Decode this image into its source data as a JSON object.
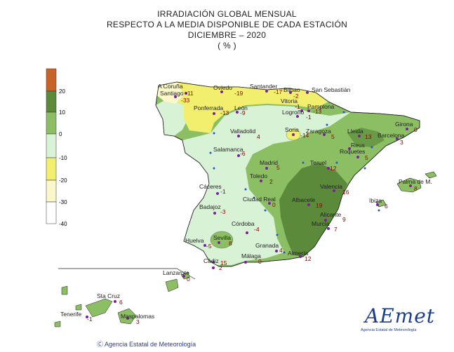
{
  "header": {
    "line1": "IRRADIACIÓN  GLOBAL MENSUAL",
    "line2": "RESPECTO  A LA MEDIA DISPONIBLE DE CADA ESTACIÓN",
    "line3": "DICIEMBRE  – 2020",
    "line4": "( % )"
  },
  "legend": {
    "labels": [
      "20",
      "10",
      "0",
      "-10",
      "-20",
      "-30",
      "-40"
    ],
    "colors": [
      "#c8642a",
      "#5a8a3a",
      "#8cbf64",
      "#d8f2d6",
      "#f2ef6e",
      "#faf7c8",
      "#ffffff"
    ]
  },
  "stations": [
    {
      "name": "A Coruña",
      "value": ""
    },
    {
      "name": "Santiago",
      "value": "-11"
    },
    {
      "name": "",
      "value": "-33"
    },
    {
      "name": "Oviedo",
      "value": "-19"
    },
    {
      "name": "Santander",
      "value": "-17"
    },
    {
      "name": "Bilbao",
      "value": "-2"
    },
    {
      "name": "San Sebastián",
      "value": ""
    },
    {
      "name": "Vitoria",
      "value": "-1"
    },
    {
      "name": "Pamplona",
      "value": "-13"
    },
    {
      "name": "Ponferrada",
      "value": "-13"
    },
    {
      "name": "León",
      "value": "-9"
    },
    {
      "name": "Logroño",
      "value": "-1"
    },
    {
      "name": "Girona",
      "value": "0"
    },
    {
      "name": "Valladolid",
      "value": "4"
    },
    {
      "name": "Soria",
      "value": "-14"
    },
    {
      "name": "Zaragoza",
      "value": "5"
    },
    {
      "name": "Lleida",
      "value": "13"
    },
    {
      "name": "Barcelona",
      "value": "3"
    },
    {
      "name": "Salamanca",
      "value": "-6"
    },
    {
      "name": "Reus",
      "value": ""
    },
    {
      "name": "Roquetes",
      "value": "5"
    },
    {
      "name": "Madrid",
      "value": "5"
    },
    {
      "name": "Teruel",
      "value": "12"
    },
    {
      "name": "Toledo",
      "value": "2"
    },
    {
      "name": "Palma de M.",
      "value": "8"
    },
    {
      "name": "Cáceres",
      "value": "-1"
    },
    {
      "name": "Valencia",
      "value": "16"
    },
    {
      "name": "Ciudad Real",
      "value": "0"
    },
    {
      "name": "Albacete",
      "value": "19"
    },
    {
      "name": "Ibiza",
      "value": "6"
    },
    {
      "name": "Badajoz",
      "value": "-3"
    },
    {
      "name": "Alicante",
      "value": "9"
    },
    {
      "name": "Córdoba",
      "value": "-4"
    },
    {
      "name": "Murcia",
      "value": "7"
    },
    {
      "name": "Huelva",
      "value": "-5"
    },
    {
      "name": "Sevilla",
      "value": "8"
    },
    {
      "name": "Granada",
      "value": "4"
    },
    {
      "name": "Almería",
      "value": "12"
    },
    {
      "name": "Málaga",
      "value": "0"
    },
    {
      "name": "Cádiz",
      "value": "15"
    },
    {
      "name": "",
      "value": "2"
    },
    {
      "name": "Lanzarote",
      "value": "0"
    },
    {
      "name": "Sta Cruz",
      "value": "6"
    },
    {
      "name": "Tenerife",
      "value": "-1"
    },
    {
      "name": "Maspalomas",
      "value": "3"
    }
  ],
  "footer": {
    "copyright": "Ⓒ  Agencia Estatal de Meteorología",
    "logo_text": "AEmet",
    "logo_sub": "Agencia Estatal de Meteorología"
  },
  "colors": {
    "yellow": "#f2ef6e",
    "pale_green": "#d8f2d6",
    "mid_green": "#8cbf64",
    "dark_green": "#5a8a3a",
    "station_dot": "#7a1fa0",
    "value_text": "#8b0000",
    "contour_dot": "#2255cc"
  }
}
